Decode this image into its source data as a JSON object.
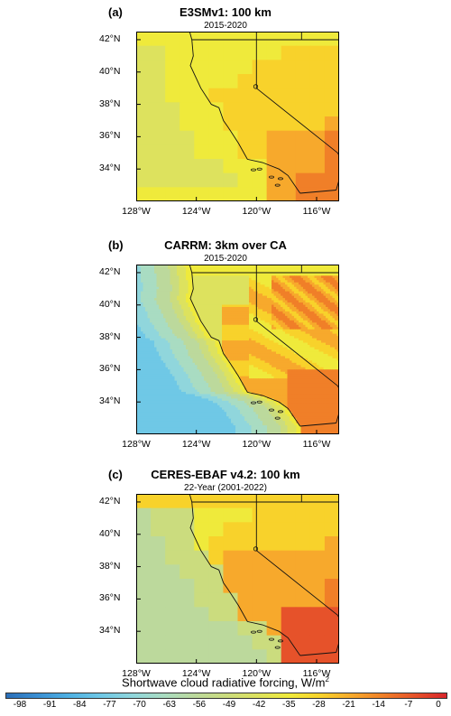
{
  "panels": [
    {
      "letter": "(a)",
      "title": "E3SMv1: 100 km",
      "subtitle": "2015-2020",
      "style": "coarse_a"
    },
    {
      "letter": "(b)",
      "title": "CARRM: 3km over CA",
      "subtitle": "2015-2020",
      "style": "fine_b"
    },
    {
      "letter": "(c)",
      "title": "CERES-EBAF v4.2: 100 km",
      "subtitle": "22-Year (2001-2022)",
      "style": "coarse_c"
    }
  ],
  "axes": {
    "lat_labels": [
      "42°N",
      "40°N",
      "38°N",
      "36°N",
      "34°N"
    ],
    "lon_labels": [
      "128°W",
      "124°W",
      "120°W",
      "116°W"
    ],
    "lat_range": [
      32,
      42.5
    ],
    "lon_range": [
      -128,
      -114.5
    ]
  },
  "colorbar": {
    "title": "Shortwave cloud radiative forcing, W/m",
    "title_sup": "2",
    "ticks": [
      "-98",
      "-91",
      "-84",
      "-77",
      "-70",
      "-63",
      "-56",
      "-49",
      "-42",
      "-35",
      "-28",
      "-21",
      "-14",
      "-7",
      "0"
    ],
    "colors": [
      "#2b6fb8",
      "#3a8fd3",
      "#4fb1e3",
      "#6fc8e6",
      "#90d6dc",
      "#a9dcc2",
      "#bcd99c",
      "#cbdc7e",
      "#dde25e",
      "#efea3b",
      "#f8d22b",
      "#f7a92c",
      "#f07f28",
      "#e6522a",
      "#d9262b"
    ]
  }
}
